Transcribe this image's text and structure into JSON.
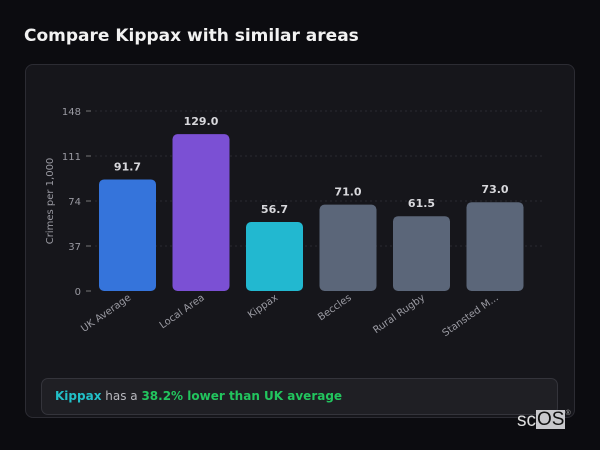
{
  "title": "Compare Kippax with similar areas",
  "chart_data": {
    "type": "bar",
    "categories": [
      "UK Average",
      "Local Area",
      "Kippax",
      "Beccles",
      "Rural Rugby",
      "Stansted M..."
    ],
    "values": [
      91.7,
      129.0,
      56.7,
      71.0,
      61.5,
      73.0
    ],
    "value_labels": [
      "91.7",
      "129.0",
      "56.7",
      "71.0",
      "61.5",
      "73.0"
    ],
    "colors": [
      "#3574db",
      "#7b50d4",
      "#22b8d0",
      "#5b6679",
      "#5b6679",
      "#5b6679"
    ],
    "ylabel": "Crimes per 1,000",
    "xlabel": "",
    "ylim": [
      0,
      148
    ],
    "yticks": [
      0,
      37,
      74,
      111,
      148
    ],
    "grid": true
  },
  "callout": {
    "subject": "Kippax",
    "middle": " has a ",
    "highlight": "38.2% lower than UK average"
  },
  "logo": {
    "text_a": "sc",
    "text_b": "OS",
    "mark": "®"
  }
}
